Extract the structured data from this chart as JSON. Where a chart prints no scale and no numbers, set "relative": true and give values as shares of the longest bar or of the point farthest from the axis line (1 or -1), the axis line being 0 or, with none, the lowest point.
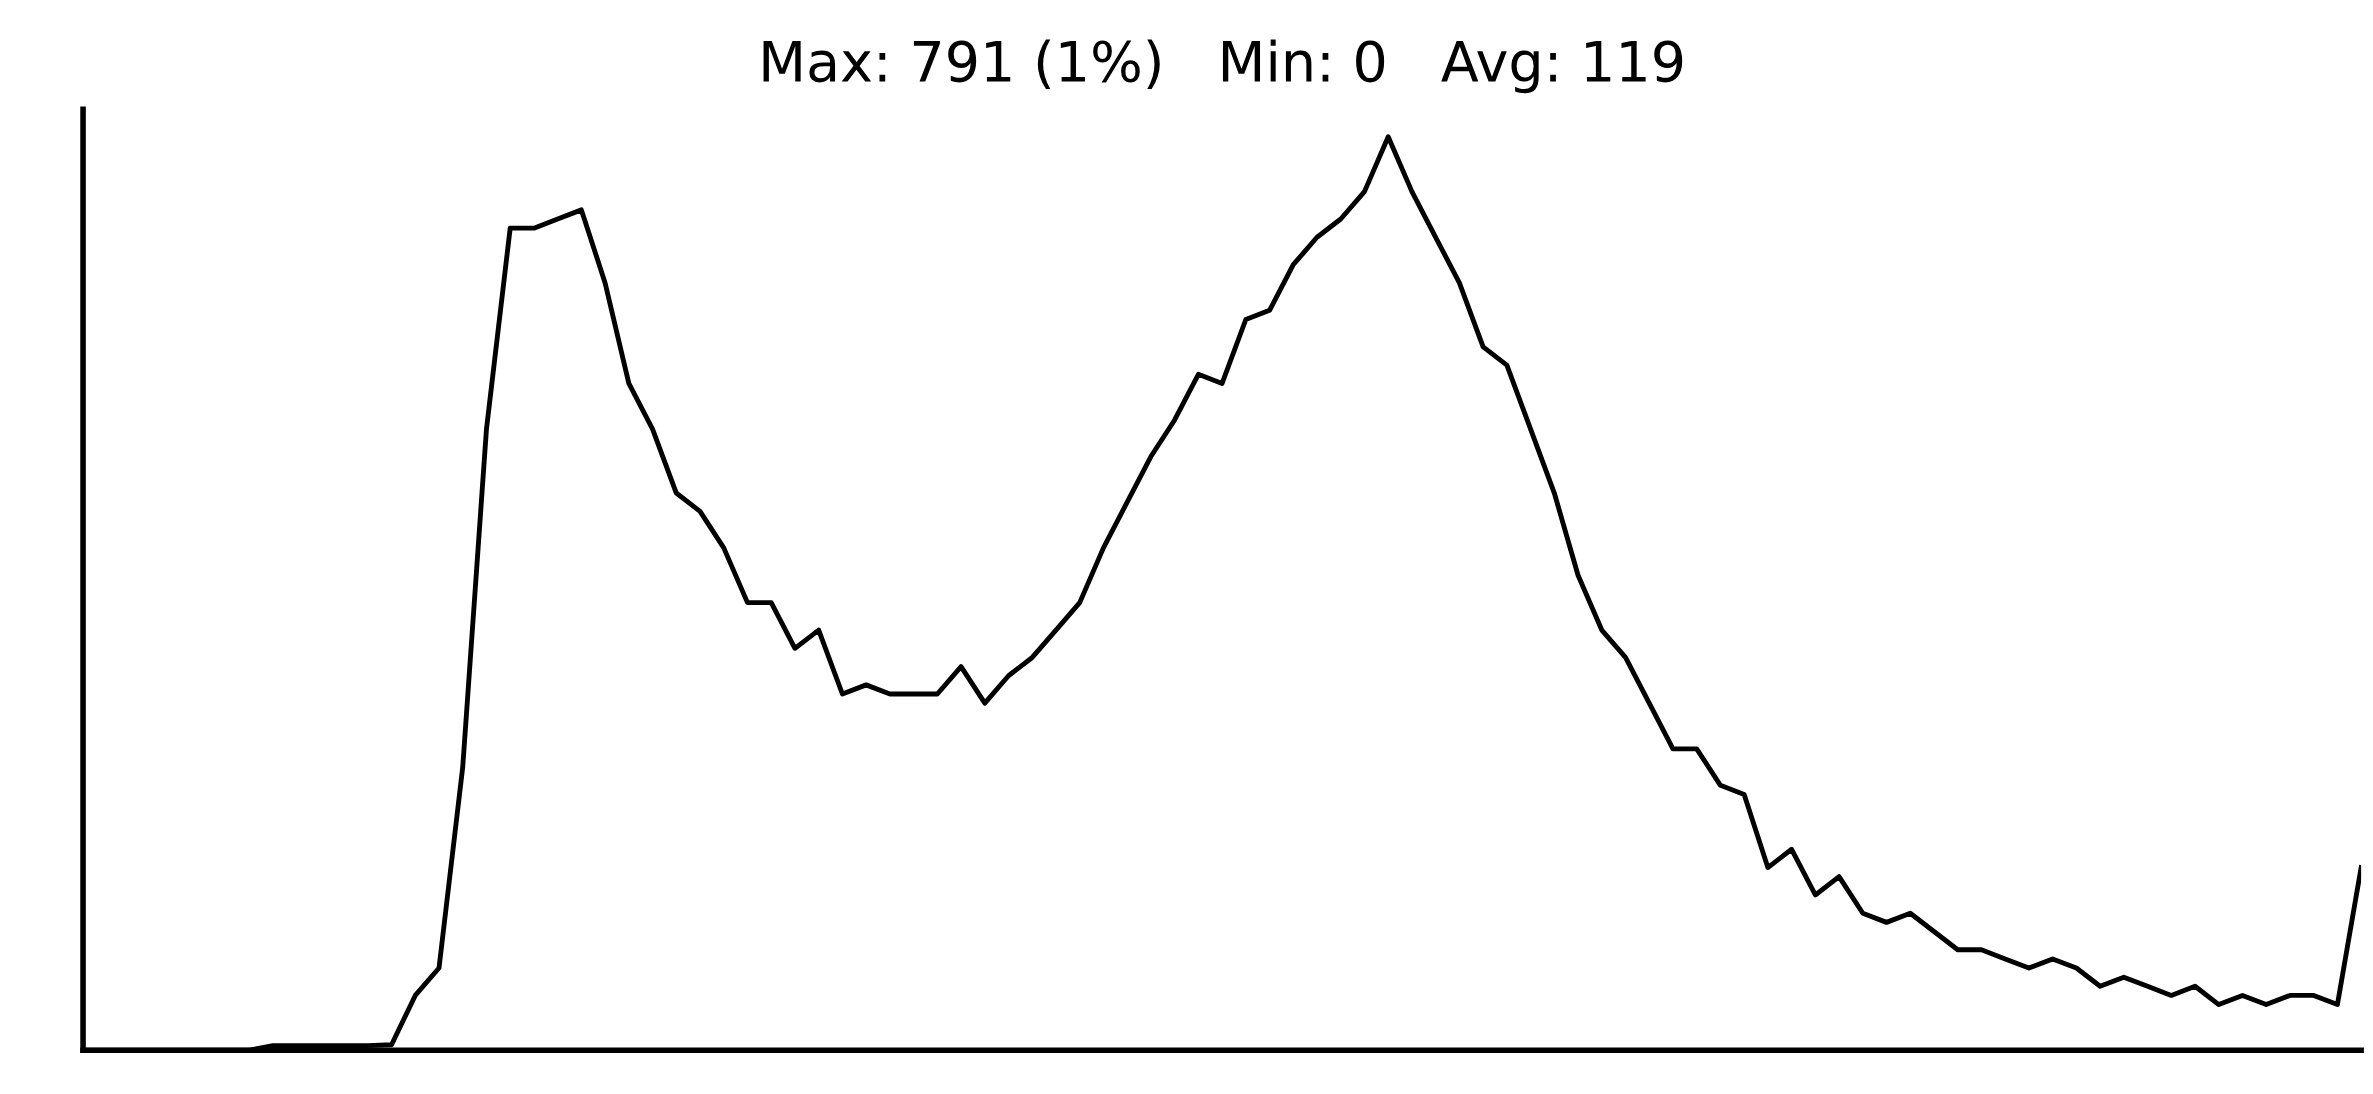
{
  "chart_data": {
    "type": "line",
    "title": "Max: 791 (1%)   Min: 0   Avg: 119",
    "relative": true,
    "color": "#000000",
    "categories": [
      null,
      null,
      null,
      null,
      null,
      null,
      null,
      null,
      null,
      null,
      null,
      null,
      null,
      null,
      null,
      null,
      null,
      null,
      null,
      null,
      null,
      null,
      null,
      null,
      null,
      null,
      null,
      null,
      null,
      null,
      null,
      null,
      null,
      null,
      null,
      null,
      null,
      null,
      null,
      null,
      null,
      null,
      null,
      null,
      null,
      null,
      null,
      null,
      null,
      null,
      null,
      null,
      null,
      null,
      null,
      null,
      null,
      null,
      null,
      null,
      null,
      null,
      null,
      null,
      null,
      null,
      null,
      null,
      null,
      null,
      null,
      null,
      null,
      null,
      null,
      null,
      null,
      null,
      null,
      null,
      null,
      null,
      null,
      null,
      null,
      null,
      null,
      null,
      null,
      null,
      null,
      null,
      null,
      null,
      null,
      null,
      null
    ],
    "values": [
      0,
      0,
      0,
      0,
      0,
      0,
      0,
      0,
      0.005,
      0.005,
      0.005,
      0.005,
      0.005,
      0.006,
      0.06,
      0.09,
      0.31,
      0.68,
      0.9,
      0.9,
      0.91,
      0.92,
      0.84,
      0.73,
      0.68,
      0.61,
      0.59,
      0.55,
      0.49,
      0.49,
      0.44,
      0.46,
      0.39,
      0.4,
      0.39,
      0.39,
      0.39,
      0.42,
      0.38,
      0.41,
      0.43,
      0.46,
      0.49,
      0.55,
      0.6,
      0.65,
      0.69,
      0.74,
      0.73,
      0.8,
      0.81,
      0.86,
      0.89,
      0.91,
      0.94,
      1.0,
      0.94,
      0.89,
      0.84,
      0.77,
      0.75,
      0.68,
      0.61,
      0.52,
      0.46,
      0.43,
      0.38,
      0.33,
      0.33,
      0.29,
      0.28,
      0.2,
      0.22,
      0.17,
      0.19,
      0.15,
      0.14,
      0.15,
      0.13,
      0.11,
      0.11,
      0.1,
      0.09,
      0.1,
      0.09,
      0.07,
      0.08,
      0.07,
      0.06,
      0.07,
      0.05,
      0.06,
      0.05,
      0.06,
      0.06,
      0.05,
      0.2
    ],
    "grid": false,
    "legend": false,
    "marker": "none",
    "line_style": "solid"
  }
}
